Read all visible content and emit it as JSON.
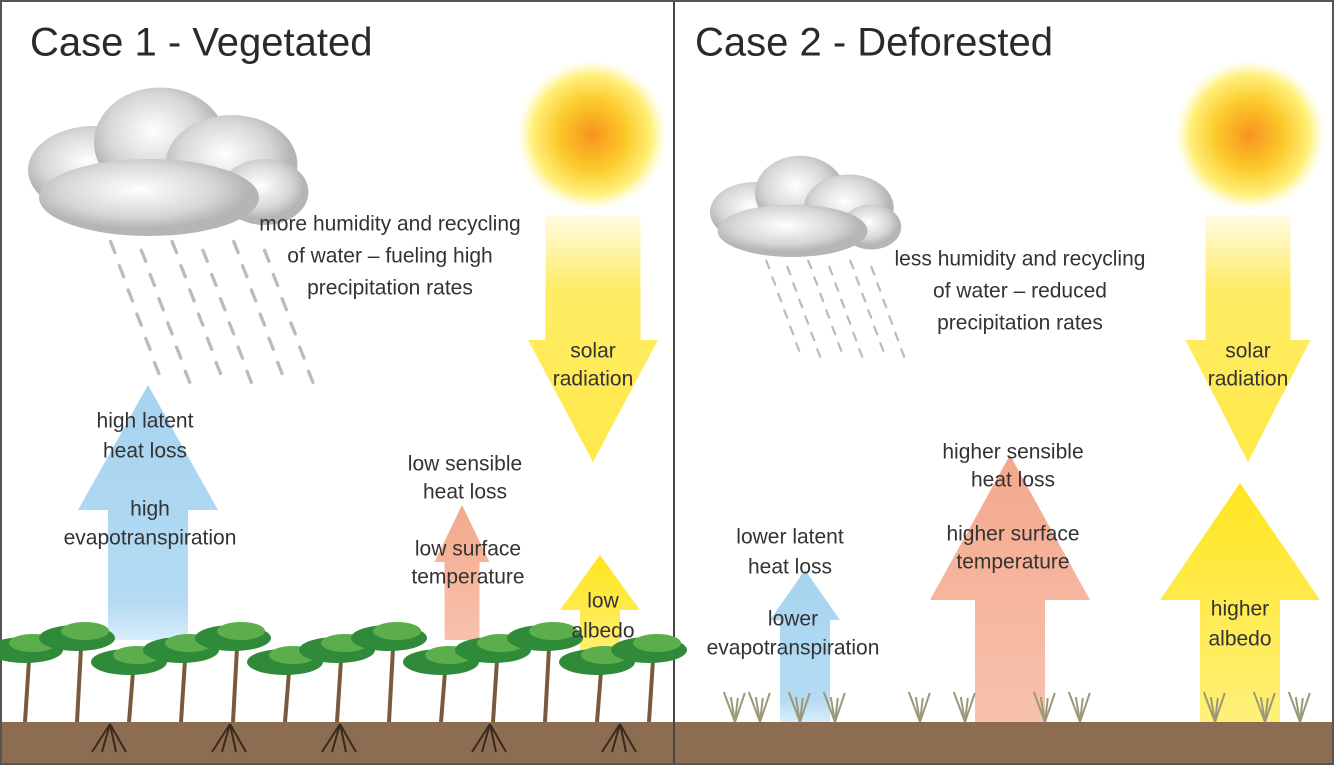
{
  "panels": [
    {
      "title": "Case 1 - Vegetated",
      "precipitation_note": [
        "more humidity and recycling",
        "of water – fueling high",
        "precipitation rates"
      ],
      "solar": [
        "solar",
        "radiation"
      ],
      "latent": [
        "high latent",
        "heat loss"
      ],
      "evapotranspiration": [
        "high",
        "evapotranspiration"
      ],
      "sensible": [
        "low sensible",
        "heat loss"
      ],
      "surface": [
        "low surface",
        "temperature"
      ],
      "albedo": [
        "low",
        "albedo"
      ]
    },
    {
      "title": "Case 2 - Deforested",
      "precipitation_note": [
        "less humidity and recycling",
        "of water – reduced",
        "precipitation rates"
      ],
      "solar": [
        "solar",
        "radiation"
      ],
      "latent": [
        "lower latent",
        "heat loss"
      ],
      "evapotranspiration": [
        "lower",
        "evapotranspiration"
      ],
      "sensible": [
        "higher sensible",
        "heat loss"
      ],
      "surface": [
        "higher surface",
        "temperature"
      ],
      "albedo": [
        "higher",
        "albedo"
      ]
    }
  ]
}
